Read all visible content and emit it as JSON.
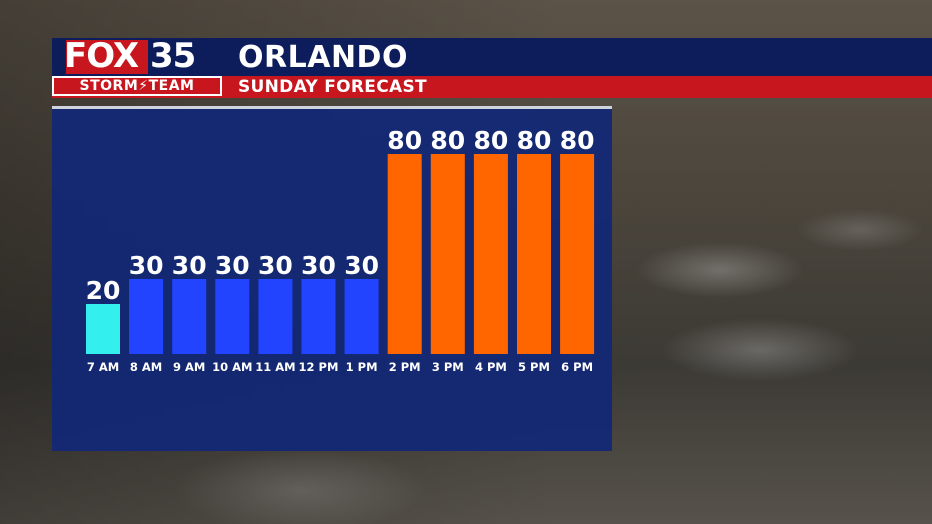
{
  "header": {
    "title": "ORLANDO",
    "subtitle": "SUNDAY FORECAST"
  },
  "logo": {
    "brand": "FOX",
    "channel": "35",
    "team": "STORM⚡TEAM"
  },
  "colors": {
    "header_blue": "#0d1d5c",
    "header_red": "#c8161e",
    "panel_blue": "#112876",
    "bar_low": "#33f0ef",
    "bar_mid": "#2244ff",
    "bar_high": "#ff6600"
  },
  "chart_data": {
    "type": "bar",
    "title": "",
    "xlabel": "",
    "ylabel": "",
    "ylim": [
      0,
      100
    ],
    "grid": false,
    "categories": [
      "7 AM",
      "8 AM",
      "9 AM",
      "10 AM",
      "11 AM",
      "12 PM",
      "1 PM",
      "2 PM",
      "3 PM",
      "4 PM",
      "5 PM",
      "6 PM"
    ],
    "values": [
      20,
      30,
      30,
      30,
      30,
      30,
      30,
      80,
      80,
      80,
      80,
      80
    ]
  }
}
